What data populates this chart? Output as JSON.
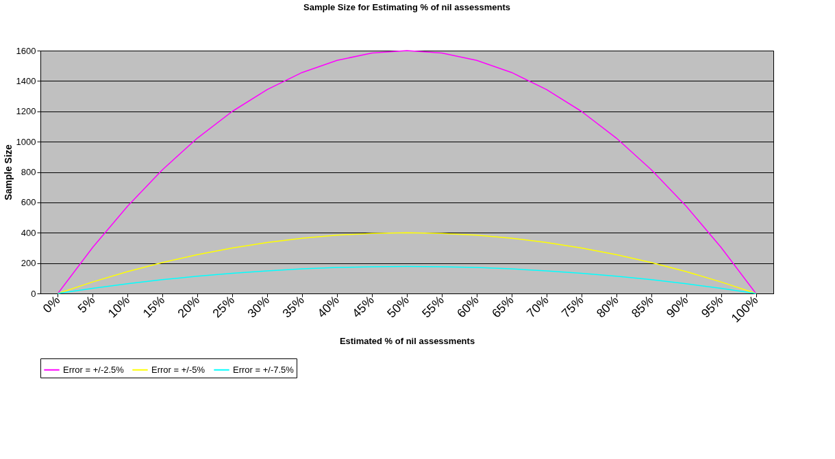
{
  "chart_data": {
    "type": "line",
    "title": "Sample Size for Estimating % of nil assessments",
    "xlabel": "Estimated % of nil  assessments",
    "ylabel": "Sample Size",
    "categories": [
      "0%",
      "5%",
      "10%",
      "15%",
      "20%",
      "25%",
      "30%",
      "35%",
      "40%",
      "45%",
      "50%",
      "55%",
      "60%",
      "65%",
      "70%",
      "75%",
      "80%",
      "85%",
      "90%",
      "95%",
      "100%"
    ],
    "series": [
      {
        "name": "Error = +/-2.5%",
        "color": "#ff00ff",
        "values": [
          0,
          304,
          576,
          816,
          1024,
          1200,
          1344,
          1456,
          1536,
          1584,
          1600,
          1584,
          1536,
          1456,
          1344,
          1200,
          1024,
          816,
          576,
          304,
          0
        ]
      },
      {
        "name": "Error = +/-5%",
        "color": "#ffff00",
        "values": [
          0,
          76,
          144,
          204,
          256,
          300,
          336,
          364,
          384,
          396,
          400,
          396,
          384,
          364,
          336,
          300,
          256,
          204,
          144,
          76,
          0
        ]
      },
      {
        "name": "Error = +/-7.5%",
        "color": "#00ffff",
        "values": [
          0,
          34,
          64,
          91,
          114,
          133,
          149,
          162,
          171,
          176,
          178,
          176,
          171,
          162,
          149,
          133,
          114,
          91,
          64,
          34,
          0
        ]
      }
    ],
    "ylim": [
      0,
      1600
    ],
    "yticks": [
      0,
      200,
      400,
      600,
      800,
      1000,
      1200,
      1400,
      1600
    ],
    "grid": "y",
    "legend": "bottom",
    "line_style": "solid"
  }
}
